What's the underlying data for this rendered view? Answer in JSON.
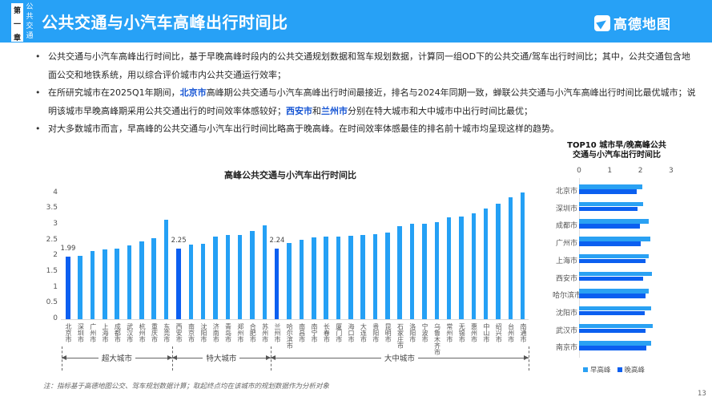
{
  "header": {
    "chapter": "第一章",
    "chapter_chars": [
      "第",
      "一",
      "章"
    ],
    "section_chars": [
      "公",
      "共",
      "交",
      "通"
    ],
    "section": "公共交通",
    "title": "公共交通与小汽车高峰出行时间比",
    "logo_text": "高德地图",
    "bg_color": "#27a1f6"
  },
  "bullets": [
    {
      "parts": [
        {
          "text": "公共交通与小汽车高峰出行时间比，基于早晚高峰时段内的公共交通规划数据和驾车规划数据，计算同一组OD下的公共交通/驾车出行时间比；其中，公共交通包含地面公交和地铁系统，用以综合评价城市内公共交通运行效率；",
          "highlight": false
        }
      ]
    },
    {
      "parts": [
        {
          "text": "在所研究城市在2025Q1年期间，",
          "highlight": false
        },
        {
          "text": "北京市",
          "highlight": true
        },
        {
          "text": "高峰期公共交通与小汽车高峰出行时间最接近，排名与2024年同期一致，蝉联公共交通与小汽车高峰出行时间比最优城市；说明该城市早晚高峰期采用公共交通出行的时间效率体感较好；",
          "highlight": false
        },
        {
          "text": "西安市",
          "highlight": true
        },
        {
          "text": "和",
          "highlight": false
        },
        {
          "text": "兰州市",
          "highlight": true
        },
        {
          "text": "分别在特大城市和大中城市中出行时间比最优；",
          "highlight": false
        }
      ]
    },
    {
      "parts": [
        {
          "text": "对大多数城市而言，早高峰的公共交通与小汽车出行时间比略高于晚高峰。在时间效率体感最佳的排名前十城市均呈现这样的趋势。",
          "highlight": false
        }
      ]
    }
  ],
  "chart_data": [
    {
      "type": "bar",
      "title": "高峰公共交通与小汽车出行时间比",
      "xlabel": "",
      "ylabel": "",
      "ylim": [
        0,
        4
      ],
      "yticks": [
        "0",
        "0.5",
        "1",
        "1.5",
        "2",
        "2.5",
        "3",
        "3.5",
        "4"
      ],
      "grid": false,
      "colors": {
        "default": "#24a0f5",
        "highlight": "#0c5ff1"
      },
      "categories": [
        "北京市",
        "深圳市",
        "广州市",
        "上海市",
        "成都市",
        "武汉市",
        "杭州市",
        "重庆市",
        "东莞市",
        "西安市",
        "南京市",
        "沈阳市",
        "济南市",
        "青岛市",
        "郑州市",
        "合肥市",
        "苏州市",
        "兰州市",
        "哈尔滨市",
        "南昌市",
        "南宁市",
        "长春市",
        "厦门市",
        "海口市",
        "大连市",
        "贵阳市",
        "昆明市",
        "石家庄市",
        "洛阳市",
        "宁波市",
        "乌鲁木齐市",
        "常州市",
        "无锡市",
        "惠州市",
        "中山市",
        "绍兴市",
        "台州市",
        "南通市"
      ],
      "values": [
        1.99,
        2.0,
        2.16,
        2.22,
        2.23,
        2.33,
        2.48,
        2.56,
        3.16,
        2.25,
        2.37,
        2.4,
        2.63,
        2.66,
        2.68,
        2.8,
        2.98,
        2.24,
        2.41,
        2.53,
        2.6,
        2.62,
        2.63,
        2.64,
        2.66,
        2.7,
        2.74,
        2.96,
        3.02,
        3.04,
        3.09,
        3.24,
        3.25,
        3.37,
        3.52,
        3.66,
        3.88,
        4.02
      ],
      "highlighted_indices": [
        0,
        9,
        17
      ],
      "data_labels": [
        {
          "index": 0,
          "text": "1.99"
        },
        {
          "index": 9,
          "text": "2.25"
        },
        {
          "index": 17,
          "text": "2.24"
        }
      ],
      "groups": [
        {
          "label": "超大城市",
          "start": 0,
          "end": 8
        },
        {
          "label": "特大城市",
          "start": 9,
          "end": 16
        },
        {
          "label": "大中城市",
          "start": 17,
          "end": 37
        }
      ]
    },
    {
      "type": "bar",
      "orientation": "horizontal",
      "title": "TOP10 城市早/晚高峰公共交通与小汽车出行时间比",
      "title_lines": [
        "TOP10 城市早/晚高峰公共",
        "交通与小汽车出行时间比"
      ],
      "xlim": [
        0,
        3
      ],
      "xticks": [
        "0",
        "1",
        "2",
        "3"
      ],
      "legend_position": "bottom",
      "categories": [
        "北京市",
        "深圳市",
        "成都市",
        "广州市",
        "上海市",
        "西安市",
        "哈尔滨市",
        "沈阳市",
        "武汉市",
        "南京市"
      ],
      "series": [
        {
          "name": "早高峰",
          "color": "#2aa1f3",
          "values": [
            2.05,
            2.08,
            2.28,
            2.33,
            2.26,
            2.37,
            2.28,
            2.34,
            2.39,
            2.34
          ]
        },
        {
          "name": "晚高峰",
          "color": "#0b5ff0",
          "values": [
            1.87,
            1.9,
            1.99,
            2.0,
            2.16,
            2.09,
            2.16,
            2.13,
            2.16,
            2.19
          ]
        }
      ]
    }
  ],
  "footnote": "注：指标基于高德地图公交、驾车规划数据计算；取起终点均在该城市的规划数据作为分析对象",
  "page_number": "13"
}
